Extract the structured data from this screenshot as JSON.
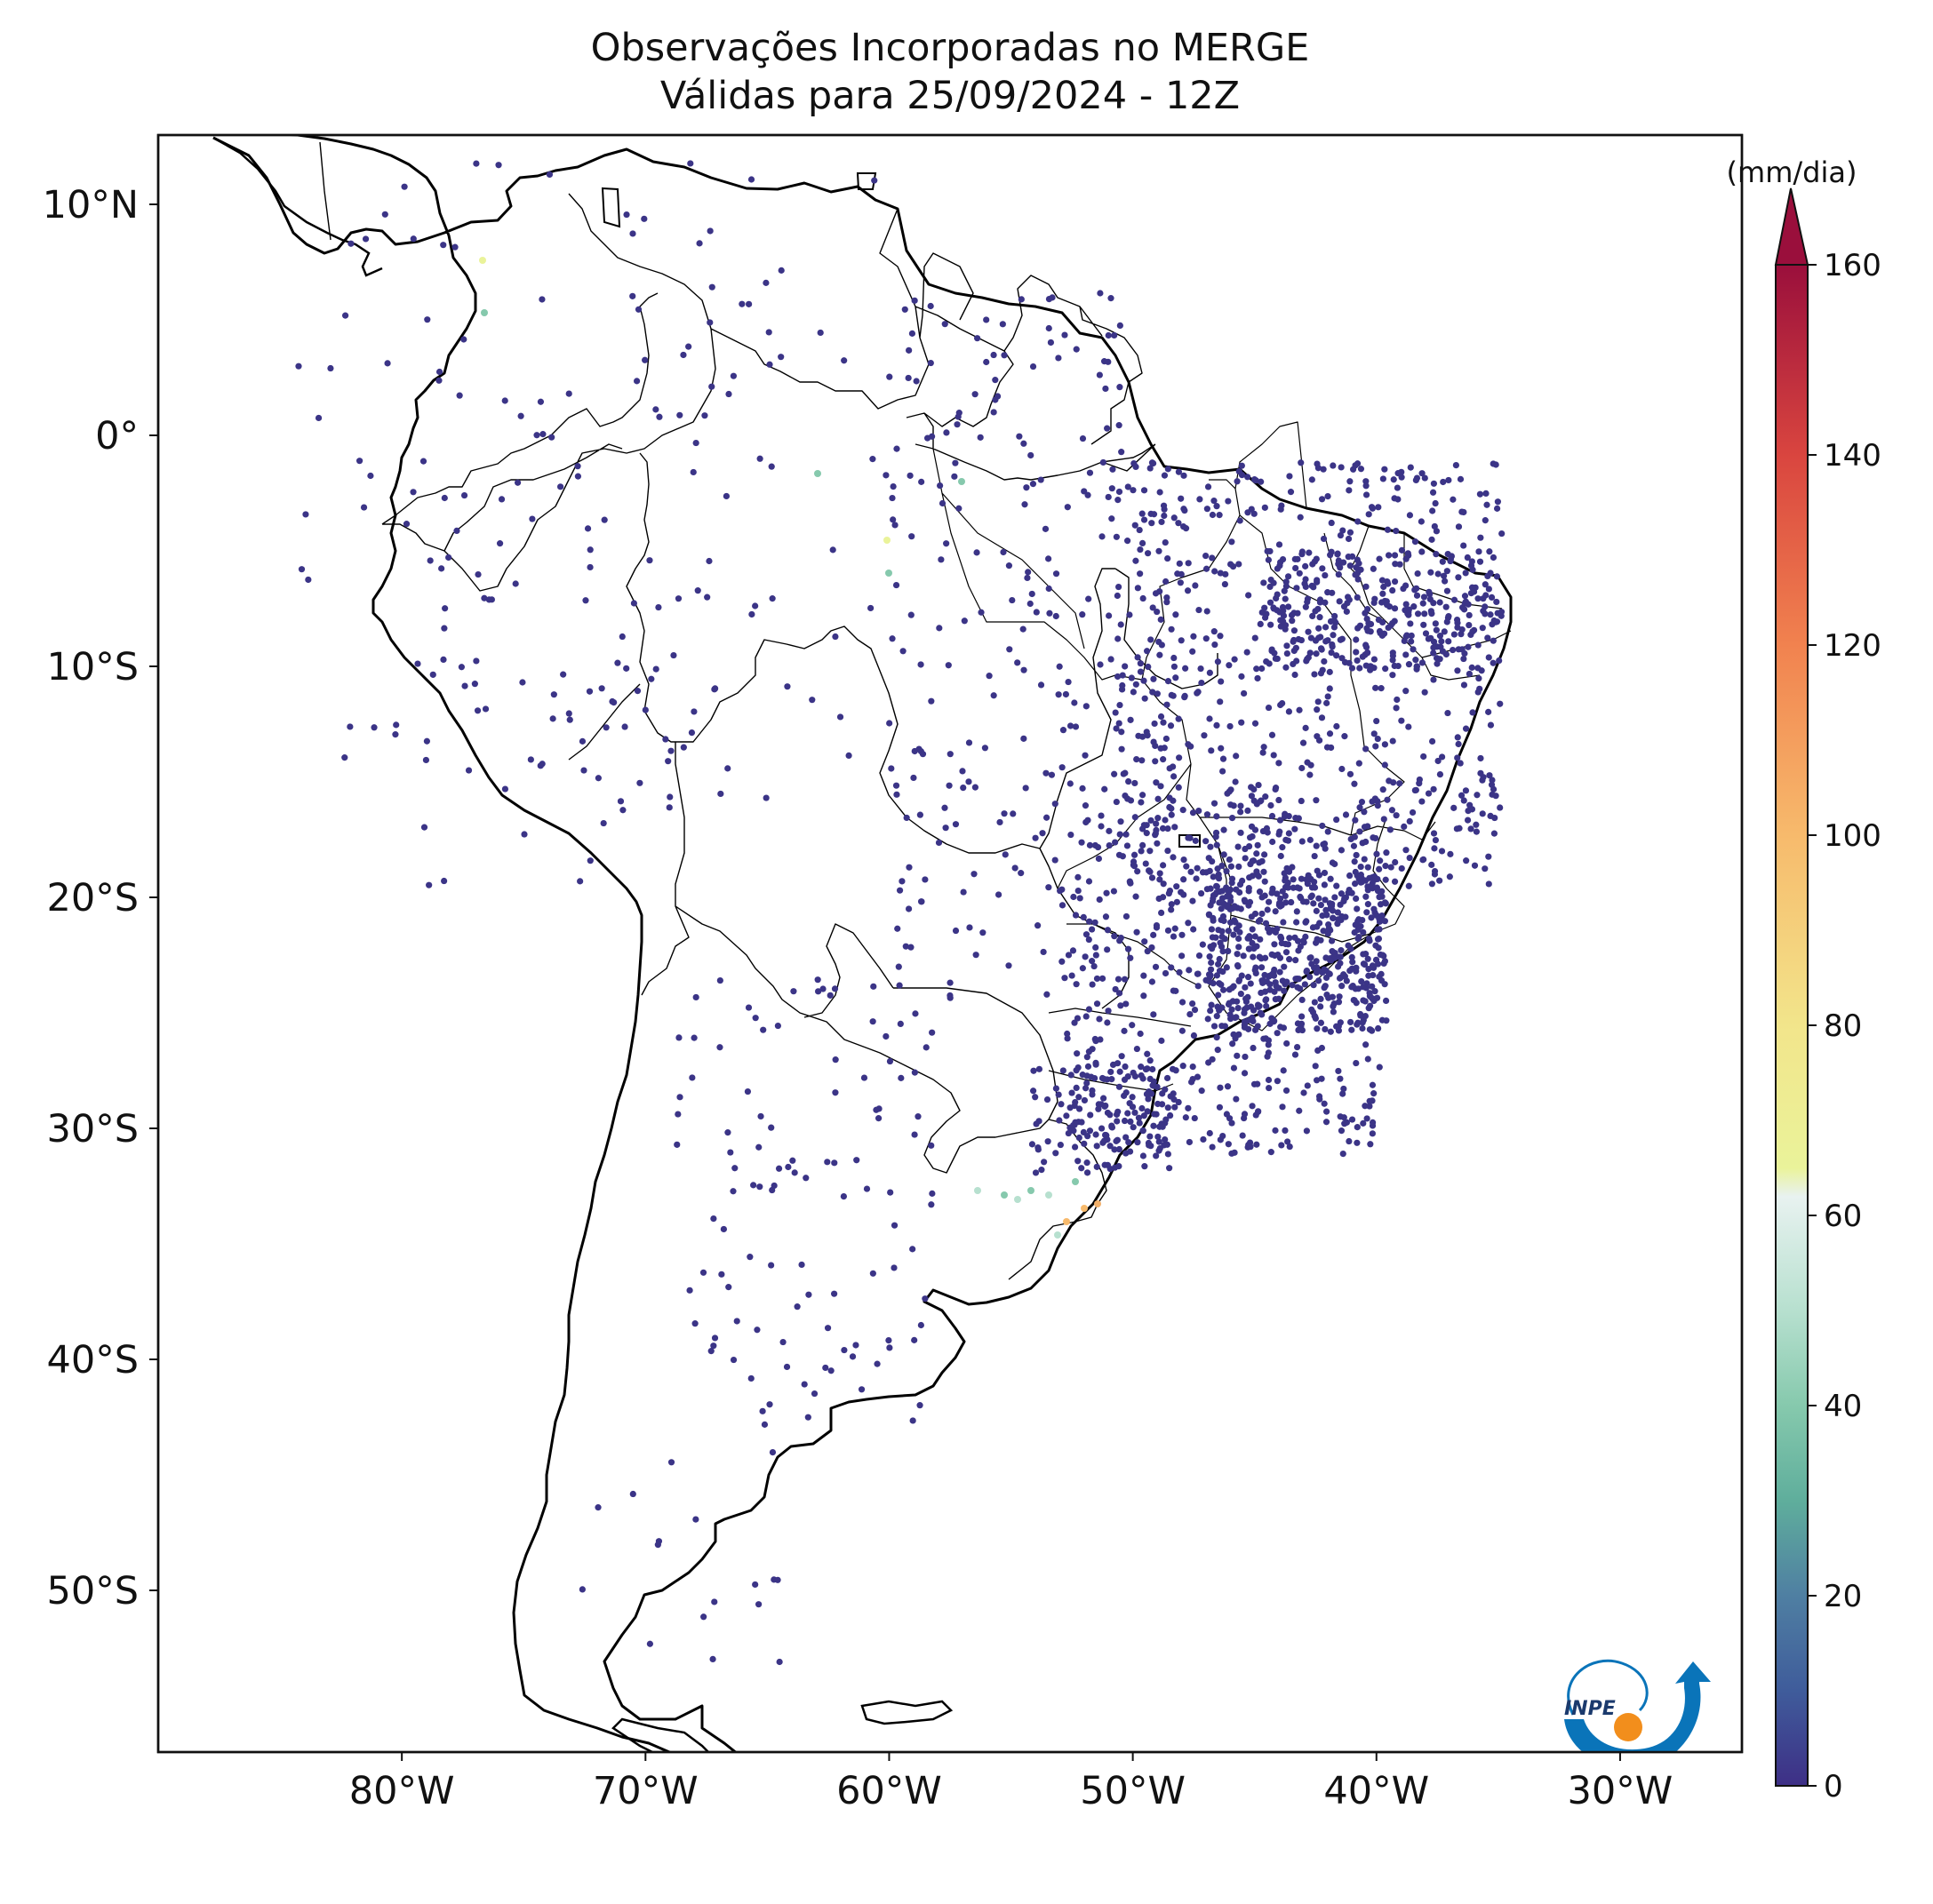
{
  "title": {
    "line1": "Observações Incorporadas no MERGE",
    "line2": "Válidas para 25/09/2024 - 12Z"
  },
  "map": {
    "lon_range": [
      -90,
      -25
    ],
    "lat_range": [
      -57,
      13
    ],
    "lon_ticks": [
      {
        "value": -80,
        "label": "80°W"
      },
      {
        "value": -70,
        "label": "70°W"
      },
      {
        "value": -60,
        "label": "60°W"
      },
      {
        "value": -50,
        "label": "50°W"
      },
      {
        "value": -40,
        "label": "40°W"
      },
      {
        "value": -30,
        "label": "30°W"
      }
    ],
    "lat_ticks": [
      {
        "value": 10,
        "label": "10°N"
      },
      {
        "value": 0,
        "label": "0°"
      },
      {
        "value": -10,
        "label": "10°S"
      },
      {
        "value": -20,
        "label": "20°S"
      },
      {
        "value": -30,
        "label": "30°S"
      },
      {
        "value": -40,
        "label": "40°S"
      },
      {
        "value": -50,
        "label": "50°S"
      }
    ],
    "observations_color_default": "#3b3487"
  },
  "colorbar": {
    "unit_label": "(mm/dia)",
    "min": 0,
    "max": 160,
    "ticks": [
      "0",
      "20",
      "40",
      "60",
      "80",
      "100",
      "120",
      "140",
      "160"
    ],
    "tick_values": [
      0,
      20,
      40,
      60,
      80,
      100,
      120,
      140,
      160
    ],
    "extend": "max",
    "stops": [
      {
        "value": 0,
        "color": "#3e2f86"
      },
      {
        "value": 10,
        "color": "#3f5c9b"
      },
      {
        "value": 20,
        "color": "#4f7fa2"
      },
      {
        "value": 30,
        "color": "#5fae9c"
      },
      {
        "value": 40,
        "color": "#86c9ad"
      },
      {
        "value": 50,
        "color": "#b7e0cf"
      },
      {
        "value": 62,
        "color": "#e8f2f0"
      },
      {
        "value": 65,
        "color": "#eaf39a"
      },
      {
        "value": 80,
        "color": "#f2e58b"
      },
      {
        "value": 100,
        "color": "#f7ba6c"
      },
      {
        "value": 120,
        "color": "#f1824f"
      },
      {
        "value": 140,
        "color": "#d9453f"
      },
      {
        "value": 160,
        "color": "#9a0f3c"
      }
    ]
  },
  "logo": {
    "text": "INPE"
  }
}
